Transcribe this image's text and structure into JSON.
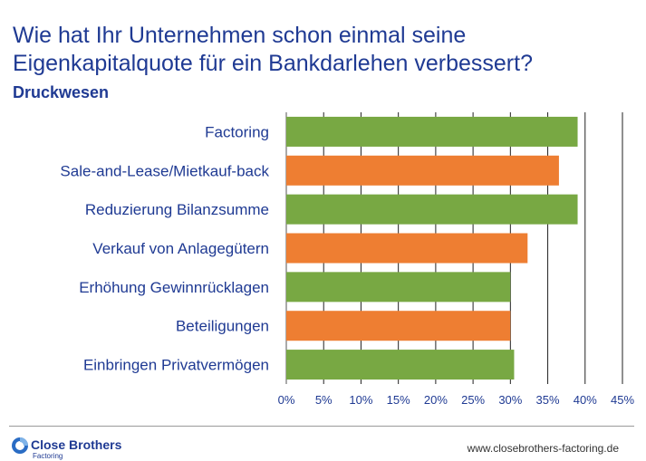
{
  "header": {
    "title": "Wie hat Ihr Unternehmen schon einmal seine Eigenkapitalquote für ein Bankdarlehen verbessert?",
    "subtitle": "Druckwesen"
  },
  "chart_data": {
    "type": "bar",
    "orientation": "horizontal",
    "categories": [
      "Factoring",
      "Sale-and-Lease/Mietkauf-back",
      "Reduzierung Bilanzsumme",
      "Verkauf von Anlagegütern",
      "Erhöhung Gewinnrücklagen",
      "Beteiligungen",
      "Einbringen Privatvermögen"
    ],
    "values": [
      39,
      36.5,
      39,
      32.3,
      30,
      30,
      30.5
    ],
    "colors": [
      "#78a843",
      "#ee7e32",
      "#78a843",
      "#ee7e32",
      "#78a843",
      "#ee7e32",
      "#78a843"
    ],
    "xticks": [
      "0%",
      "5%",
      "10%",
      "15%",
      "20%",
      "25%",
      "30%",
      "35%",
      "40%",
      "45%"
    ],
    "xlim": [
      0,
      45
    ],
    "grid": true
  },
  "footer": {
    "brand": "Close Brothers",
    "brand_sub": "Factoring",
    "website": "www.closebrothers-factoring.de"
  }
}
